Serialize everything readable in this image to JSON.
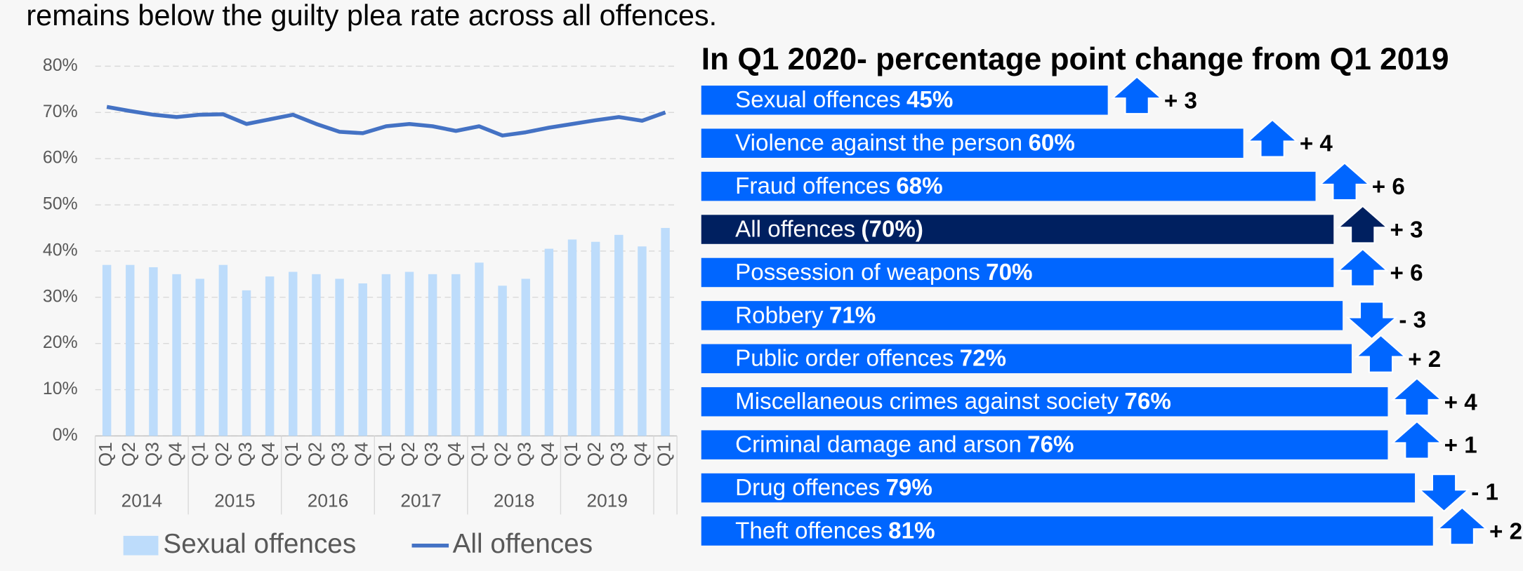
{
  "intro": "remains below the guilty plea rate across all offences.",
  "chart_data": [
    {
      "type": "bar-line",
      "categories": [
        "Q1",
        "Q2",
        "Q3",
        "Q4",
        "Q1",
        "Q2",
        "Q3",
        "Q4",
        "Q1",
        "Q2",
        "Q3",
        "Q4",
        "Q1",
        "Q2",
        "Q3",
        "Q4",
        "Q1",
        "Q2",
        "Q3",
        "Q4",
        "Q1",
        "Q2",
        "Q3",
        "Q4",
        "Q1"
      ],
      "category_groups": [
        "2014",
        "2015",
        "2016",
        "2017",
        "2018",
        "2019"
      ],
      "series": [
        {
          "name": "Sexual offences",
          "type": "bar",
          "color": "#bddcfb",
          "values": [
            37,
            37,
            36.5,
            35,
            34,
            37,
            31.5,
            34.5,
            35.5,
            35,
            34,
            33,
            35,
            35.5,
            35,
            35,
            37.5,
            32.5,
            34,
            40.5,
            42.5,
            42,
            43.5,
            41,
            45
          ]
        },
        {
          "name": "All offences",
          "type": "line",
          "color": "#4472c4",
          "values": [
            71.2,
            70.3,
            69.5,
            69,
            69.5,
            69.6,
            67.5,
            68.5,
            69.5,
            67.5,
            65.8,
            65.5,
            67,
            67.5,
            67,
            66,
            67,
            65,
            65.7,
            66.7,
            67.5,
            68.3,
            69,
            68.2,
            70
          ]
        }
      ],
      "ylim": [
        0,
        80
      ],
      "yticks": [
        {
          "value": 0,
          "label": "0%"
        },
        {
          "value": 10,
          "label": "10%"
        },
        {
          "value": 20,
          "label": "20%"
        },
        {
          "value": 30,
          "label": "30%"
        },
        {
          "value": 40,
          "label": "40%"
        },
        {
          "value": 50,
          "label": "50%"
        },
        {
          "value": 60,
          "label": "60%"
        },
        {
          "value": 70,
          "label": "70%"
        },
        {
          "value": 80,
          "label": "80%"
        }
      ],
      "grid": true,
      "legend": "bottom"
    },
    {
      "type": "hbar-change",
      "title": "In Q1 2020- percentage point change from Q1 2019",
      "categories": [
        "Sexual offences",
        "Violence against the person",
        "Fraud offences",
        "All offences",
        "Possession of weapons",
        "Robbery",
        "Public order offences",
        "Miscellaneous crimes against society",
        "Criminal damage and arson",
        "Drug offences",
        "Theft offences"
      ],
      "values": [
        45,
        60,
        68,
        70,
        70,
        71,
        72,
        76,
        76,
        79,
        81
      ],
      "value_labels": [
        "45%",
        "60%",
        "68%",
        "(70%)",
        "70%",
        "71%",
        "72%",
        "76%",
        "76%",
        "79%",
        "81%"
      ],
      "colors": [
        "#0066ff",
        "#0066ff",
        "#0066ff",
        "#002060",
        "#0066ff",
        "#0066ff",
        "#0066ff",
        "#0066ff",
        "#0066ff",
        "#0066ff",
        "#0066ff"
      ],
      "changes": [
        3,
        4,
        6,
        3,
        6,
        -3,
        2,
        4,
        1,
        -1,
        2
      ],
      "change_labels": [
        "+ 3",
        "+ 4",
        "+ 6",
        "+ 3",
        "+ 6",
        "- 3",
        "+ 2",
        "+ 4",
        "+ 1",
        "- 1",
        "+ 2"
      ]
    }
  ]
}
